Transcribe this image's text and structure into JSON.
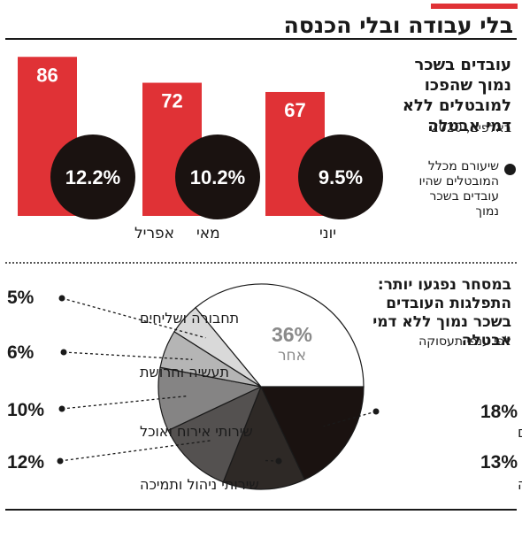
{
  "header": {
    "title": "בלי עבודה ובלי הכנסה"
  },
  "chart_data": [
    {
      "type": "bar",
      "title": "עובדים בשכר נמוך שהפכו למובטלים ללא דמי אבטלה",
      "subtitle": "באלפים, 2020",
      "categories": [
        "אפריל",
        "מאי",
        "יוני"
      ],
      "values": [
        86,
        72,
        67
      ],
      "value_labels": [
        "86",
        "72",
        "67"
      ],
      "rates": [
        "12.2%",
        "10.2%",
        "9.5%"
      ],
      "legend": "שיעורם מכלל המובטלים שהיו עובדים בשכר נמוך",
      "colors": {
        "bar": "#e03236",
        "circle": "#1a1210"
      }
    },
    {
      "type": "pie",
      "title": "במסחר נפגעו יותר: התפלגות העובדים בשכר נמוך ללא דמי אבטלה",
      "subtitle": "לפי ענפי תעסוקה",
      "slices": [
        {
          "label": "מסחר ומוסכים",
          "value": 18,
          "pct": "18%",
          "color": "#1a1210"
        },
        {
          "label": "בניה",
          "value": 13,
          "pct": "13%",
          "color": "#2e2926"
        },
        {
          "label": "שירותי ניהול ותמיכה",
          "value": 12,
          "pct": "12%",
          "color": "#545150"
        },
        {
          "label": "שירותי אירוח ואוכל",
          "value": 10,
          "pct": "10%",
          "color": "#858484"
        },
        {
          "label": "תעשיה וחרושת",
          "value": 6,
          "pct": "6%",
          "color": "#b5b5b5"
        },
        {
          "label": "תחבורה ושליחים",
          "value": 5,
          "pct": "5%",
          "color": "#d9d9d9"
        },
        {
          "label": "אחר",
          "value": 36,
          "pct": "36%",
          "color": "#ffffff"
        }
      ]
    }
  ]
}
